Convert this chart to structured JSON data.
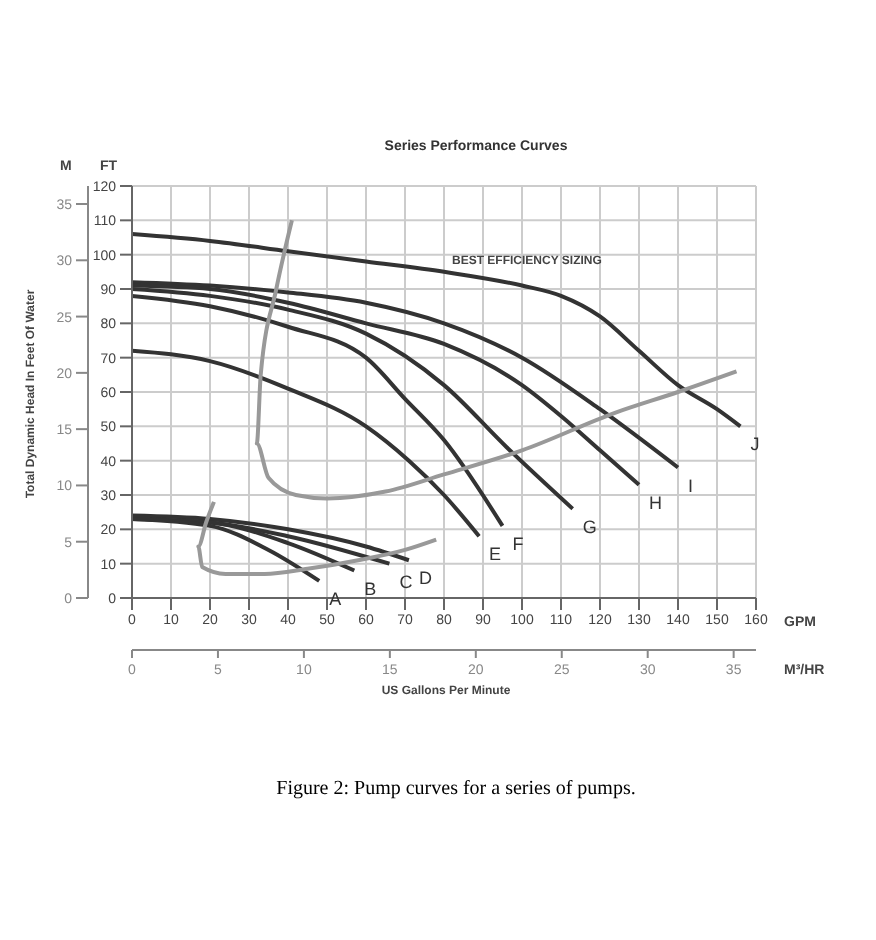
{
  "chart_data": {
    "type": "line",
    "title": "Series Performance Curves",
    "xlabel": "GPM",
    "ylabel": "FT",
    "y2label": "M",
    "x2label": "M³/HR",
    "annotations": [
      "Total Dynamic Head In Feet Of Water",
      "US Gallons Per Minute",
      "BEST EFFICIENCY SIZING",
      "Figure 2: Pump curves for a series of pumps."
    ],
    "xlim": [
      0,
      160
    ],
    "xticks": [
      0,
      10,
      20,
      30,
      40,
      50,
      60,
      70,
      80,
      90,
      100,
      110,
      120,
      130,
      140,
      150,
      160
    ],
    "ylim": [
      0,
      120
    ],
    "yticks": [
      0,
      10,
      20,
      30,
      40,
      50,
      60,
      70,
      80,
      90,
      100,
      110,
      120
    ],
    "y2lim": [
      0,
      36.6
    ],
    "y2ticks": [
      0,
      5,
      10,
      15,
      20,
      25,
      30,
      35
    ],
    "x2lim": [
      0,
      36.3
    ],
    "x2ticks": [
      0,
      5,
      10,
      15,
      20,
      25,
      30,
      35
    ],
    "grid": true,
    "marker": "none",
    "line_style": "solid",
    "series": [
      {
        "name": "J",
        "color": "#333333",
        "x": [
          0,
          20,
          40,
          60,
          80,
          100,
          110,
          120,
          130,
          140,
          150,
          156
        ],
        "values": [
          106,
          104,
          101,
          98,
          95,
          91,
          88,
          82,
          72,
          62,
          55,
          50
        ]
      },
      {
        "name": "I",
        "color": "#333333",
        "x": [
          0,
          20,
          40,
          60,
          80,
          100,
          120,
          140
        ],
        "values": [
          92,
          91,
          89,
          86,
          80,
          70,
          55,
          38
        ]
      },
      {
        "name": "H",
        "color": "#333333",
        "x": [
          0,
          20,
          40,
          60,
          80,
          100,
          110,
          120,
          130
        ],
        "values": [
          91,
          90,
          86,
          80,
          74,
          62,
          53,
          43,
          33
        ]
      },
      {
        "name": "G",
        "color": "#333333",
        "x": [
          0,
          20,
          40,
          60,
          80,
          96,
          113
        ],
        "values": [
          90,
          88,
          84,
          77,
          62,
          44,
          26
        ]
      },
      {
        "name": "F",
        "color": "#333333",
        "x": [
          0,
          20,
          40,
          60,
          70,
          80,
          95
        ],
        "values": [
          88,
          85,
          79,
          70,
          58,
          46,
          21
        ]
      },
      {
        "name": "E",
        "color": "#333333",
        "x": [
          0,
          20,
          40,
          60,
          71,
          80,
          89
        ],
        "values": [
          72,
          69,
          61,
          50,
          40,
          30,
          18
        ]
      },
      {
        "name": "D",
        "color": "#333333",
        "x": [
          0,
          20,
          40,
          60,
          71
        ],
        "values": [
          24,
          23,
          20,
          15,
          11
        ]
      },
      {
        "name": "C",
        "color": "#333333",
        "x": [
          0,
          20,
          40,
          66
        ],
        "values": [
          23,
          22,
          18,
          10
        ]
      },
      {
        "name": "B",
        "color": "#333333",
        "x": [
          0,
          20,
          40,
          57
        ],
        "values": [
          23,
          22,
          16,
          8
        ]
      },
      {
        "name": "A",
        "color": "#333333",
        "x": [
          0,
          20,
          35,
          48
        ],
        "values": [
          23,
          21,
          14,
          5
        ]
      },
      {
        "color": "#999999",
        "x": [
          41,
          37,
          33,
          32,
          35,
          42,
          50,
          65,
          80,
          100,
          124,
          140,
          155
        ],
        "values": [
          110,
          90,
          65,
          45,
          35,
          30,
          29,
          31,
          36,
          43,
          54,
          60,
          66
        ]
      },
      {
        "color": "#999999",
        "x": [
          21,
          19,
          17,
          18,
          24,
          34,
          45,
          58,
          70,
          78
        ],
        "values": [
          28,
          22,
          15,
          9,
          7,
          7,
          8.5,
          11,
          14,
          17
        ]
      }
    ]
  }
}
